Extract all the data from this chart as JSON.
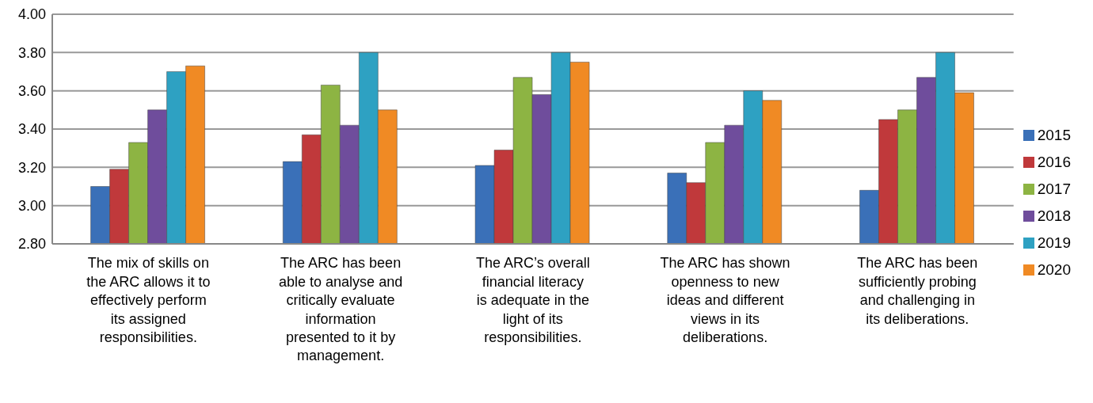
{
  "chart_data": {
    "type": "bar",
    "categories": [
      "The mix of skills on the ARC allows it to effectively perform its assigned responsibilities.",
      "The ARC has been able to analyse and critically evaluate information presented to it by management.",
      "The ARC’s overall financial literacy is adequate in the light of its responsibilities.",
      "The ARC has shown openness to new ideas and different views in its deliberations.",
      "The ARC has been sufficiently probing and challenging in its deliberations."
    ],
    "series": [
      {
        "name": "2015",
        "color": "#3a70b8",
        "values": [
          3.1,
          3.23,
          3.21,
          3.17,
          3.08
        ]
      },
      {
        "name": "2016",
        "color": "#c0393b",
        "values": [
          3.19,
          3.37,
          3.29,
          3.12,
          3.45
        ]
      },
      {
        "name": "2017",
        "color": "#8db443",
        "values": [
          3.33,
          3.63,
          3.67,
          3.33,
          3.5
        ]
      },
      {
        "name": "2018",
        "color": "#6f4d9c",
        "values": [
          3.5,
          3.42,
          3.58,
          3.42,
          3.67
        ]
      },
      {
        "name": "2019",
        "color": "#2ea1c2",
        "values": [
          3.7,
          3.8,
          3.8,
          3.6,
          3.8
        ]
      },
      {
        "name": "2020",
        "color": "#f08a24",
        "values": [
          3.73,
          3.5,
          3.75,
          3.55,
          3.59
        ]
      }
    ],
    "ylim": [
      2.8,
      4.0
    ],
    "yticks": [
      {
        "value": 2.8,
        "label": "2.80"
      },
      {
        "value": 3.0,
        "label": "3.00"
      },
      {
        "value": 3.2,
        "label": "3.20"
      },
      {
        "value": 3.4,
        "label": "3.40"
      },
      {
        "value": 3.6,
        "label": "3.60"
      },
      {
        "value": 3.8,
        "label": "3.80"
      },
      {
        "value": 4.0,
        "label": "4.00"
      }
    ],
    "grid": "y",
    "legend": "right"
  }
}
